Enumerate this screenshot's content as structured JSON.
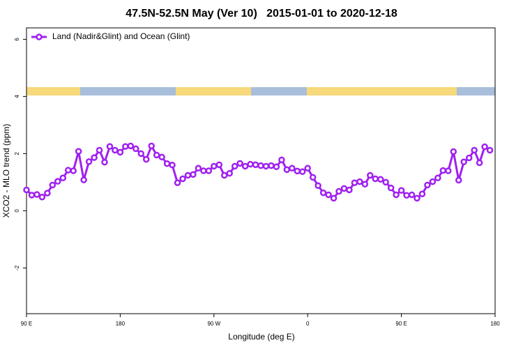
{
  "chart_data": {
    "type": "line",
    "title": "47.5N-52.5N May (Ver 10)   2015-01-01 to 2020-12-18",
    "x_label": "Longitude (deg E)",
    "y_label": "XCO2 - MLO trend (ppm)",
    "x": [
      90,
      95,
      100,
      105,
      110,
      115,
      120,
      125,
      130,
      135,
      140,
      145,
      150,
      155,
      160,
      165,
      170,
      175,
      180,
      185,
      190,
      195,
      200,
      205,
      210,
      215,
      220,
      225,
      230,
      235,
      240,
      245,
      250,
      255,
      260,
      265,
      270,
      275,
      280,
      285,
      290,
      295,
      300,
      305,
      310,
      315,
      320,
      325,
      330,
      335,
      340,
      345,
      350,
      355,
      360,
      365,
      370,
      375,
      380,
      385,
      390,
      395,
      400,
      405,
      410,
      415,
      420,
      425,
      430,
      435,
      440,
      445,
      450,
      455,
      460,
      465,
      470,
      475,
      480,
      485,
      490,
      495,
      500,
      505,
      510,
      515,
      520,
      525,
      530,
      535
    ],
    "series": [
      {
        "name": "Land (Nadir&Glint) and Ocean (Glint)",
        "color": "#a020f0",
        "values": [
          0.73,
          0.55,
          0.57,
          0.48,
          0.62,
          0.9,
          1.03,
          1.15,
          1.42,
          1.4,
          2.08,
          1.08,
          1.72,
          1.86,
          2.12,
          1.7,
          2.25,
          2.12,
          2.05,
          2.25,
          2.27,
          2.17,
          2.0,
          1.8,
          2.27,
          1.95,
          1.88,
          1.65,
          1.6,
          0.98,
          1.12,
          1.24,
          1.27,
          1.49,
          1.4,
          1.4,
          1.56,
          1.61,
          1.24,
          1.31,
          1.56,
          1.66,
          1.56,
          1.63,
          1.61,
          1.58,
          1.56,
          1.58,
          1.54,
          1.78,
          1.44,
          1.49,
          1.39,
          1.37,
          1.49,
          1.17,
          0.88,
          0.63,
          0.56,
          0.44,
          0.68,
          0.78,
          0.73,
          0.98,
          1.02,
          0.93,
          1.24,
          1.12,
          1.1,
          1.0,
          0.8,
          0.56,
          0.71,
          0.54,
          0.56,
          0.44,
          0.59,
          0.9,
          1.02,
          1.15,
          1.41,
          1.4,
          2.07,
          1.07,
          1.71,
          1.85,
          2.12,
          1.68,
          2.24,
          2.12
        ]
      }
    ],
    "xlim": [
      90,
      540
    ],
    "xticks": [
      {
        "value": 90,
        "label": "90 E"
      },
      {
        "value": 180,
        "label": "180"
      },
      {
        "value": 270,
        "label": "90 W"
      },
      {
        "value": 360,
        "label": "0"
      },
      {
        "value": 450,
        "label": "90 E"
      },
      {
        "value": 540,
        "label": "180"
      }
    ],
    "ylim": [
      -3.6,
      6.4
    ],
    "yticks": [
      -2,
      0,
      2,
      4,
      6
    ],
    "legend": "top-left"
  }
}
